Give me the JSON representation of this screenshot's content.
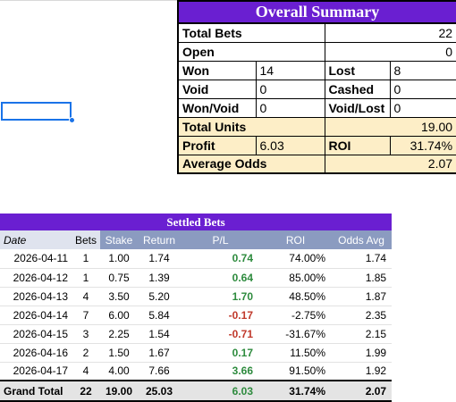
{
  "summary": {
    "title": "Overall Summary",
    "total_bets": {
      "label": "Total Bets",
      "value": "22"
    },
    "open": {
      "label": "Open",
      "value": "0"
    },
    "won": {
      "label": "Won",
      "value": "14"
    },
    "lost": {
      "label": "Lost",
      "value": "8"
    },
    "void": {
      "label": "Void",
      "value": "0"
    },
    "cashed": {
      "label": "Cashed",
      "value": "0"
    },
    "won_void": {
      "label": "Won/Void",
      "value": "0"
    },
    "void_lost": {
      "label": "Void/Lost",
      "value": "0"
    },
    "total_units": {
      "label": "Total Units",
      "value": "19.00"
    },
    "profit": {
      "label": "Profit",
      "value": "6.03"
    },
    "roi": {
      "label": "ROI",
      "value": "31.74%"
    },
    "average_odds": {
      "label": "Average Odds",
      "value": "2.07"
    }
  },
  "settled": {
    "title": "Settled Bets",
    "headers": {
      "date": "Date",
      "bets": "Bets",
      "stake": "Stake",
      "return": "Return",
      "pl": "P/L",
      "roi": "ROI",
      "odds": "Odds Avg"
    },
    "rows": [
      {
        "date": "2026-04-11",
        "bets": "1",
        "stake": "1.00",
        "return": "1.74",
        "pl": "0.74",
        "roi": "74.00%",
        "odds": "1.74"
      },
      {
        "date": "2026-04-12",
        "bets": "1",
        "stake": "0.75",
        "return": "1.39",
        "pl": "0.64",
        "roi": "85.00%",
        "odds": "1.85"
      },
      {
        "date": "2026-04-13",
        "bets": "4",
        "stake": "3.50",
        "return": "5.20",
        "pl": "1.70",
        "roi": "48.50%",
        "odds": "1.87"
      },
      {
        "date": "2026-04-14",
        "bets": "7",
        "stake": "6.00",
        "return": "5.84",
        "pl": "-0.17",
        "roi": "-2.75%",
        "odds": "2.35"
      },
      {
        "date": "2026-04-15",
        "bets": "3",
        "stake": "2.25",
        "return": "1.54",
        "pl": "-0.71",
        "roi": "-31.67%",
        "odds": "2.15"
      },
      {
        "date": "2026-04-16",
        "bets": "2",
        "stake": "1.50",
        "return": "1.67",
        "pl": "0.17",
        "roi": "11.50%",
        "odds": "1.99"
      },
      {
        "date": "2026-04-17",
        "bets": "4",
        "stake": "4.00",
        "return": "7.66",
        "pl": "3.66",
        "roi": "91.50%",
        "odds": "1.92"
      }
    ],
    "total": {
      "label": "Grand Total",
      "bets": "22",
      "stake": "19.00",
      "return": "25.03",
      "pl": "6.03",
      "roi": "31.74%",
      "odds": "2.07"
    }
  },
  "colors": {
    "title_purple": "#6a1fd1",
    "header_blue": "#8b9bc0",
    "tan": "#fdeec7",
    "positive": "#2e8b3e",
    "negative": "#c0392b",
    "selection": "#1a73e8"
  }
}
